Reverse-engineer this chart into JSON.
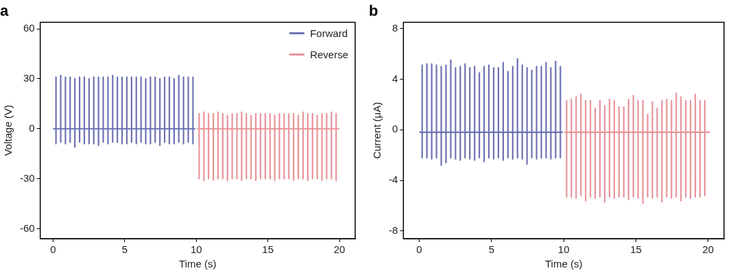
{
  "chart_data": [
    {
      "type": "line",
      "title": "a",
      "xlabel": "Time (s)",
      "ylabel": "Voltage (V)",
      "xlim": [
        -0.9,
        21.1
      ],
      "xticks": [
        0,
        5,
        10,
        15,
        20
      ],
      "ylim": [
        -66,
        64
      ],
      "yticks": [
        -60,
        -30,
        0,
        30,
        60
      ],
      "grid": false,
      "legend": "top right",
      "marker": "none",
      "line_style": "solid",
      "series": [
        {
          "name": "Forward",
          "color": "#6b72b3",
          "x": [
            0,
            0.2,
            0.2,
            0.2,
            0.2,
            0.53,
            0.53,
            0.53,
            0.53,
            0.86,
            0.86,
            0.86,
            0.86,
            1.19,
            1.19,
            1.19,
            1.19,
            1.52,
            1.52,
            1.52,
            1.52,
            1.85,
            1.85,
            1.85,
            1.85,
            2.18,
            2.18,
            2.18,
            2.18,
            2.51,
            2.51,
            2.51,
            2.51,
            2.84,
            2.84,
            2.84,
            2.84,
            3.17,
            3.17,
            3.17,
            3.17,
            3.5,
            3.5,
            3.5,
            3.5,
            3.83,
            3.83,
            3.83,
            3.83,
            4.16,
            4.16,
            4.16,
            4.16,
            4.49,
            4.49,
            4.49,
            4.49,
            4.82,
            4.82,
            4.82,
            4.82,
            5.15,
            5.15,
            5.15,
            5.15,
            5.48,
            5.48,
            5.48,
            5.48,
            5.81,
            5.81,
            5.81,
            5.81,
            6.14,
            6.14,
            6.14,
            6.14,
            6.47,
            6.47,
            6.47,
            6.47,
            6.8,
            6.8,
            6.8,
            6.8,
            7.13,
            7.13,
            7.13,
            7.13,
            7.46,
            7.46,
            7.46,
            7.46,
            7.79,
            7.79,
            7.79,
            7.79,
            8.12,
            8.12,
            8.12,
            8.12,
            8.45,
            8.45,
            8.45,
            8.45,
            8.78,
            8.78,
            8.78,
            8.78,
            9.11,
            9.11,
            9.11,
            9.11,
            9.44,
            9.44,
            9.44,
            9.44,
            9.77,
            9.77,
            9.77,
            9.77,
            9.95
          ],
          "values": [
            0,
            0,
            31,
            -9,
            0,
            0,
            32,
            -8,
            0,
            0,
            31,
            -9,
            0,
            0,
            31,
            -8,
            0,
            0,
            30,
            -11,
            0,
            0,
            31,
            -8,
            0,
            0,
            31,
            -9,
            0,
            0,
            30,
            -9,
            0,
            0,
            31,
            -9,
            0,
            0,
            31,
            -10,
            0,
            0,
            31,
            -8,
            0,
            0,
            31,
            -9,
            0,
            0,
            32,
            -8,
            0,
            0,
            31,
            -8,
            0,
            0,
            31,
            -9,
            0,
            0,
            31,
            -9,
            0,
            0,
            31,
            -8,
            0,
            0,
            31,
            -9,
            0,
            0,
            31,
            -8,
            0,
            0,
            30,
            -9,
            0,
            0,
            31,
            -9,
            0,
            0,
            31,
            -8,
            0,
            0,
            30,
            -10,
            0,
            0,
            31,
            -8,
            0,
            0,
            31,
            -9,
            0,
            0,
            30,
            -9,
            0,
            0,
            32,
            -8,
            0,
            0,
            31,
            -9,
            0,
            0,
            31,
            -8,
            0,
            0,
            31,
            -9,
            0,
            0
          ]
        },
        {
          "name": "Reverse",
          "color": "#e89499",
          "x": [
            10.05,
            10.2,
            10.2,
            10.2,
            10.2,
            10.53,
            10.53,
            10.53,
            10.53,
            10.86,
            10.86,
            10.86,
            10.86,
            11.19,
            11.19,
            11.19,
            11.19,
            11.52,
            11.52,
            11.52,
            11.52,
            11.85,
            11.85,
            11.85,
            11.85,
            12.18,
            12.18,
            12.18,
            12.18,
            12.51,
            12.51,
            12.51,
            12.51,
            12.84,
            12.84,
            12.84,
            12.84,
            13.17,
            13.17,
            13.17,
            13.17,
            13.5,
            13.5,
            13.5,
            13.5,
            13.83,
            13.83,
            13.83,
            13.83,
            14.16,
            14.16,
            14.16,
            14.16,
            14.49,
            14.49,
            14.49,
            14.49,
            14.82,
            14.82,
            14.82,
            14.82,
            15.15,
            15.15,
            15.15,
            15.15,
            15.48,
            15.48,
            15.48,
            15.48,
            15.81,
            15.81,
            15.81,
            15.81,
            16.14,
            16.14,
            16.14,
            16.14,
            16.47,
            16.47,
            16.47,
            16.47,
            16.8,
            16.8,
            16.8,
            16.8,
            17.13,
            17.13,
            17.13,
            17.13,
            17.46,
            17.46,
            17.46,
            17.46,
            17.79,
            17.79,
            17.79,
            17.79,
            18.12,
            18.12,
            18.12,
            18.12,
            18.45,
            18.45,
            18.45,
            18.45,
            18.78,
            18.78,
            18.78,
            18.78,
            19.11,
            19.11,
            19.11,
            19.11,
            19.44,
            19.44,
            19.44,
            19.44,
            19.77,
            19.77,
            19.77,
            19.77,
            20
          ],
          "values": [
            0,
            0,
            9,
            -30,
            0,
            0,
            10,
            -31,
            0,
            0,
            9,
            -30,
            0,
            0,
            9,
            -31,
            0,
            0,
            10,
            -30,
            0,
            0,
            9,
            -30,
            0,
            0,
            8,
            -31,
            0,
            0,
            9,
            -30,
            0,
            0,
            9,
            -30,
            0,
            0,
            10,
            -31,
            0,
            0,
            9,
            -30,
            0,
            0,
            8,
            -30,
            0,
            0,
            9,
            -31,
            0,
            0,
            9,
            -30,
            0,
            0,
            9,
            -30,
            0,
            0,
            9,
            -30,
            0,
            0,
            8,
            -31,
            0,
            0,
            9,
            -30,
            0,
            0,
            9,
            -30,
            0,
            0,
            9,
            -30,
            0,
            0,
            9,
            -31,
            0,
            0,
            8,
            -30,
            0,
            0,
            10,
            -30,
            0,
            0,
            9,
            -31,
            0,
            0,
            9,
            -30,
            0,
            0,
            8,
            -30,
            0,
            0,
            9,
            -31,
            0,
            0,
            9,
            -30,
            0,
            0,
            10,
            -30,
            0,
            0,
            9,
            -31,
            0,
            0
          ]
        }
      ]
    },
    {
      "type": "line",
      "title": "b",
      "xlabel": "Time (s)",
      "ylabel": "Current (μA)",
      "xlim": [
        -1.1,
        21.1
      ],
      "xticks": [
        0,
        5,
        10,
        15,
        20
      ],
      "ylim": [
        -8.6,
        8.5
      ],
      "yticks": [
        -8,
        -4,
        0,
        4,
        8
      ],
      "grid": false,
      "legend": false,
      "marker": "none",
      "line_style": "solid",
      "series": [
        {
          "color": "#6b72b3",
          "x": [
            0,
            0.2,
            0.2,
            0.2,
            0.2,
            0.53,
            0.53,
            0.53,
            0.53,
            0.86,
            0.86,
            0.86,
            0.86,
            1.19,
            1.19,
            1.19,
            1.19,
            1.52,
            1.52,
            1.52,
            1.52,
            1.85,
            1.85,
            1.85,
            1.85,
            2.18,
            2.18,
            2.18,
            2.18,
            2.51,
            2.51,
            2.51,
            2.51,
            2.84,
            2.84,
            2.84,
            2.84,
            3.17,
            3.17,
            3.17,
            3.17,
            3.5,
            3.5,
            3.5,
            3.5,
            3.83,
            3.83,
            3.83,
            3.83,
            4.16,
            4.16,
            4.16,
            4.16,
            4.49,
            4.49,
            4.49,
            4.49,
            4.82,
            4.82,
            4.82,
            4.82,
            5.15,
            5.15,
            5.15,
            5.15,
            5.48,
            5.48,
            5.48,
            5.48,
            5.81,
            5.81,
            5.81,
            5.81,
            6.14,
            6.14,
            6.14,
            6.14,
            6.47,
            6.47,
            6.47,
            6.47,
            6.8,
            6.8,
            6.8,
            6.8,
            7.13,
            7.13,
            7.13,
            7.13,
            7.46,
            7.46,
            7.46,
            7.46,
            7.79,
            7.79,
            7.79,
            7.79,
            8.12,
            8.12,
            8.12,
            8.12,
            8.45,
            8.45,
            8.45,
            8.45,
            8.78,
            8.78,
            8.78,
            8.78,
            9.11,
            9.11,
            9.11,
            9.11,
            9.44,
            9.44,
            9.44,
            9.44,
            9.77,
            9.77,
            9.77,
            9.77,
            9.95
          ],
          "values": [
            -0.2,
            -0.2,
            5.1,
            -2.2,
            -0.2,
            -0.2,
            5.2,
            -2.2,
            -0.2,
            -0.2,
            5.2,
            -2.3,
            -0.2,
            -0.2,
            5.1,
            -2.2,
            -0.2,
            -0.2,
            5.0,
            -2.8,
            -0.2,
            -0.2,
            5.1,
            -2.6,
            -0.2,
            -0.2,
            5.5,
            -2.2,
            -0.2,
            -0.2,
            4.9,
            -2.3,
            -0.2,
            -0.2,
            5.0,
            -2.4,
            -0.2,
            -0.2,
            5.2,
            -2.2,
            -0.2,
            -0.2,
            4.9,
            -2.3,
            -0.2,
            -0.2,
            5.0,
            -2.4,
            -0.2,
            -0.2,
            4.5,
            -2.2,
            -0.2,
            -0.2,
            5.0,
            -2.5,
            -0.2,
            -0.2,
            5.1,
            -2.2,
            -0.2,
            -0.2,
            4.9,
            -2.3,
            -0.2,
            -0.2,
            4.9,
            -2.2,
            -0.2,
            -0.2,
            5.3,
            -2.4,
            -0.2,
            -0.2,
            4.6,
            -2.2,
            -0.2,
            -0.2,
            5.0,
            -2.3,
            -0.2,
            -0.2,
            5.6,
            -2.2,
            -0.2,
            -0.2,
            5.1,
            -2.3,
            -0.2,
            -0.2,
            4.9,
            -2.7,
            -0.2,
            -0.2,
            4.7,
            -2.2,
            -0.2,
            -0.2,
            5.0,
            -2.3,
            -0.2,
            -0.2,
            5.0,
            -2.2,
            -0.2,
            -0.2,
            5.3,
            -2.2,
            -0.2,
            -0.2,
            4.9,
            -2.3,
            -0.2,
            -0.2,
            5.4,
            -2.2,
            -0.2,
            -0.2,
            5.0,
            -2.2,
            -0.2,
            -0.2
          ]
        },
        {
          "color": "#e89499",
          "x": [
            10.05,
            10.2,
            10.2,
            10.2,
            10.2,
            10.53,
            10.53,
            10.53,
            10.53,
            10.86,
            10.86,
            10.86,
            10.86,
            11.19,
            11.19,
            11.19,
            11.19,
            11.52,
            11.52,
            11.52,
            11.52,
            11.85,
            11.85,
            11.85,
            11.85,
            12.18,
            12.18,
            12.18,
            12.18,
            12.51,
            12.51,
            12.51,
            12.51,
            12.84,
            12.84,
            12.84,
            12.84,
            13.17,
            13.17,
            13.17,
            13.17,
            13.5,
            13.5,
            13.5,
            13.5,
            13.83,
            13.83,
            13.83,
            13.83,
            14.16,
            14.16,
            14.16,
            14.16,
            14.49,
            14.49,
            14.49,
            14.49,
            14.82,
            14.82,
            14.82,
            14.82,
            15.15,
            15.15,
            15.15,
            15.15,
            15.48,
            15.48,
            15.48,
            15.48,
            15.81,
            15.81,
            15.81,
            15.81,
            16.14,
            16.14,
            16.14,
            16.14,
            16.47,
            16.47,
            16.47,
            16.47,
            16.8,
            16.8,
            16.8,
            16.8,
            17.13,
            17.13,
            17.13,
            17.13,
            17.46,
            17.46,
            17.46,
            17.46,
            17.79,
            17.79,
            17.79,
            17.79,
            18.12,
            18.12,
            18.12,
            18.12,
            18.45,
            18.45,
            18.45,
            18.45,
            18.78,
            18.78,
            18.78,
            18.78,
            19.11,
            19.11,
            19.11,
            19.11,
            19.44,
            19.44,
            19.44,
            19.44,
            19.77,
            19.77,
            19.77,
            19.77,
            20.1
          ],
          "values": [
            -0.2,
            -0.2,
            2.3,
            -5.3,
            -0.2,
            -0.2,
            2.4,
            -5.3,
            -0.2,
            -0.2,
            2.6,
            -5.4,
            -0.2,
            -0.2,
            2.8,
            -5.2,
            -0.2,
            -0.2,
            2.3,
            -5.6,
            -0.2,
            -0.2,
            2.3,
            -5.3,
            -0.2,
            -0.2,
            1.7,
            -5.4,
            -0.2,
            -0.2,
            2.3,
            -5.3,
            -0.2,
            -0.2,
            1.9,
            -5.7,
            -0.2,
            -0.2,
            2.4,
            -5.3,
            -0.2,
            -0.2,
            2.3,
            -5.4,
            -0.2,
            -0.2,
            1.8,
            -5.3,
            -0.2,
            -0.2,
            1.8,
            -5.3,
            -0.2,
            -0.2,
            2.4,
            -5.5,
            -0.2,
            -0.2,
            2.7,
            -5.3,
            -0.2,
            -0.2,
            2.3,
            -5.4,
            -0.2,
            -0.2,
            2.3,
            -5.8,
            -0.2,
            -0.2,
            1.2,
            -5.3,
            -0.2,
            -0.2,
            2.2,
            -5.4,
            -0.2,
            -0.2,
            1.7,
            -5.3,
            -0.2,
            -0.2,
            2.3,
            -5.7,
            -0.2,
            -0.2,
            2.4,
            -5.3,
            -0.2,
            -0.2,
            2.3,
            -5.4,
            -0.2,
            -0.2,
            2.9,
            -5.3,
            -0.2,
            -0.2,
            2.6,
            -5.6,
            -0.2,
            -0.2,
            2.3,
            -5.3,
            -0.2,
            -0.2,
            2.3,
            -5.4,
            -0.2,
            -0.2,
            2.8,
            -5.3,
            -0.2,
            -0.2,
            2.3,
            -5.3,
            -0.2,
            -0.2,
            2.3,
            -5.2,
            -0.2,
            -0.2
          ]
        }
      ]
    }
  ]
}
